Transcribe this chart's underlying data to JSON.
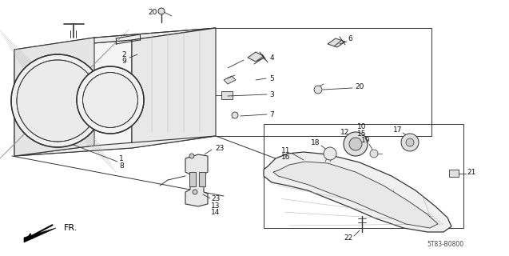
{
  "bg_color": "#ffffff",
  "diagram_code": "5T83-B0800",
  "fr_label": "FR.",
  "line_color": "#333333",
  "text_color": "#111111"
}
